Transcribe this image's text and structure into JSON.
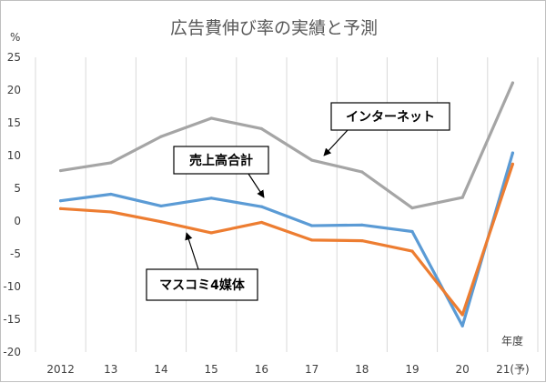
{
  "chart_data": {
    "type": "line",
    "title": "広告費伸び率の実績と予測",
    "ylabel": "%",
    "xlabel": "年度",
    "ylim": [
      -20,
      25
    ],
    "yticks": [
      25,
      20,
      15,
      10,
      5,
      0,
      -5,
      -10,
      -15,
      -20
    ],
    "grid": "vertical",
    "categories": [
      "2012",
      "13",
      "14",
      "15",
      "16",
      "17",
      "18",
      "19",
      "20",
      "21(予)"
    ],
    "series": [
      {
        "name": "インターネット",
        "color": "#a5a5a5",
        "values": [
          7.7,
          8.9,
          12.9,
          15.7,
          14.1,
          9.3,
          7.5,
          2.0,
          3.6,
          21.1
        ]
      },
      {
        "name": "売上高合計",
        "color": "#5b9bd5",
        "values": [
          3.1,
          4.1,
          2.3,
          3.5,
          2.2,
          -0.7,
          -0.6,
          -1.6,
          -16.0,
          10.4
        ]
      },
      {
        "name": "マスコミ4媒体",
        "color": "#ed7d31",
        "values": [
          1.9,
          1.4,
          -0.1,
          -1.8,
          -0.2,
          -2.9,
          -3.0,
          -4.6,
          -14.3,
          8.7
        ]
      }
    ]
  }
}
